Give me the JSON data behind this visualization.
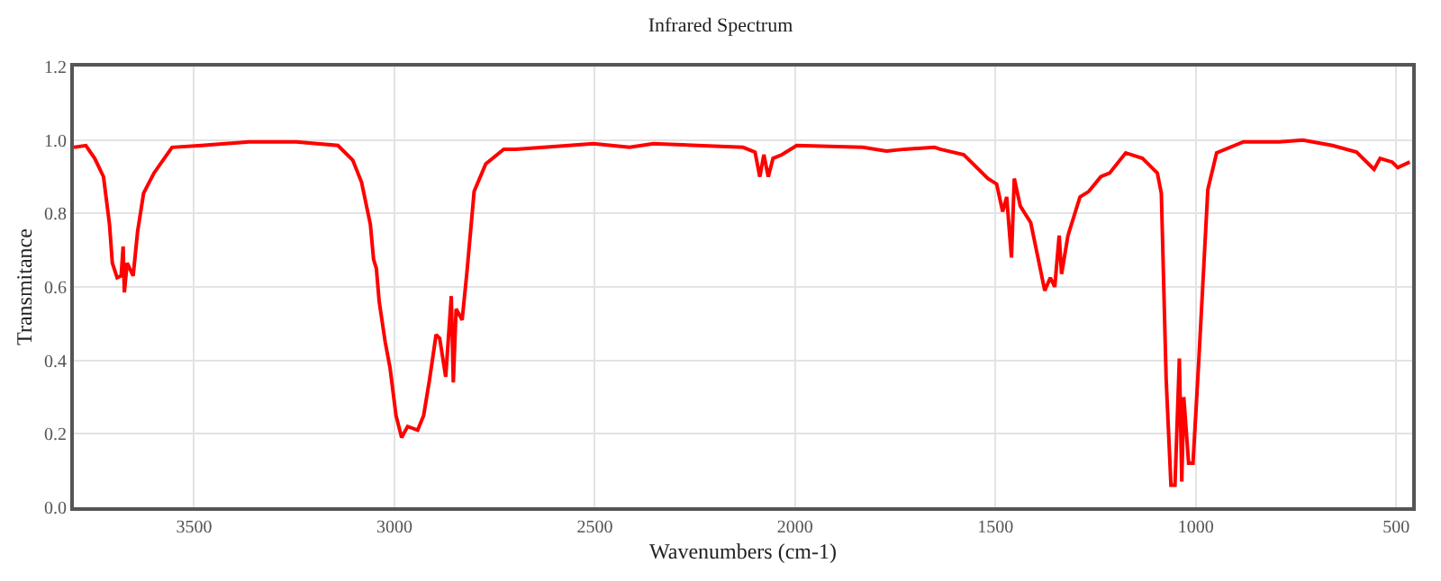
{
  "chart_data": {
    "type": "line",
    "title": "Infrared Spectrum",
    "xlabel": "Wavenumbers (cm-1)",
    "ylabel": "Transmitance",
    "xlim": [
      3800,
      460
    ],
    "xticks": [
      3500,
      3000,
      2500,
      2000,
      1500,
      1000,
      500
    ],
    "ylim": [
      0,
      1.2
    ],
    "yticks": [
      {
        "value": 0,
        "label": "0.0"
      },
      0.2,
      0.4,
      0.6,
      0.8,
      {
        "value": 1,
        "label": "1.0"
      },
      1.2
    ],
    "grid": true,
    "marker": "none",
    "line_style": "solid",
    "series": [
      {
        "color": "#ff0000",
        "x": [
          3800,
          3770,
          3748,
          3726,
          3711,
          3704,
          3692,
          3682,
          3677,
          3674,
          3667,
          3652,
          3641,
          3626,
          3600,
          3555,
          3481,
          3363,
          3245,
          3141,
          3104,
          3082,
          3060,
          3052,
          3045,
          3038,
          3023,
          3011,
          2996,
          2982,
          2967,
          2942,
          2927,
          2912,
          2896,
          2887,
          2872,
          2858,
          2853,
          2846,
          2831,
          2819,
          2801,
          2772,
          2727,
          2697,
          2503,
          2413,
          2354,
          2130,
          2100,
          2088,
          2078,
          2067,
          2055,
          2033,
          1996,
          1831,
          1772,
          1727,
          1652,
          1638,
          1579,
          1519,
          1497,
          1482,
          1472,
          1460,
          1453,
          1438,
          1412,
          1393,
          1377,
          1363,
          1352,
          1341,
          1335,
          1319,
          1289,
          1267,
          1237,
          1215,
          1175,
          1133,
          1096,
          1086,
          1074,
          1062,
          1052,
          1041,
          1035,
          1030,
          1018,
          1007,
          992,
          970,
          948,
          881,
          792,
          733,
          659,
          599,
          555,
          540,
          510,
          496,
          466
        ],
        "values": [
          0.98,
          0.985,
          0.95,
          0.9,
          0.77,
          0.665,
          0.625,
          0.63,
          0.71,
          0.585,
          0.665,
          0.63,
          0.75,
          0.855,
          0.91,
          0.98,
          0.985,
          0.995,
          0.995,
          0.985,
          0.945,
          0.885,
          0.77,
          0.675,
          0.65,
          0.56,
          0.45,
          0.38,
          0.25,
          0.19,
          0.22,
          0.21,
          0.25,
          0.35,
          0.47,
          0.46,
          0.355,
          0.575,
          0.34,
          0.54,
          0.51,
          0.64,
          0.86,
          0.935,
          0.975,
          0.975,
          0.99,
          0.98,
          0.99,
          0.98,
          0.967,
          0.9,
          0.96,
          0.9,
          0.95,
          0.96,
          0.985,
          0.98,
          0.97,
          0.975,
          0.98,
          0.975,
          0.96,
          0.895,
          0.88,
          0.805,
          0.845,
          0.68,
          0.895,
          0.82,
          0.775,
          0.675,
          0.59,
          0.625,
          0.6,
          0.74,
          0.635,
          0.74,
          0.845,
          0.86,
          0.9,
          0.91,
          0.965,
          0.95,
          0.91,
          0.855,
          0.35,
          0.06,
          0.06,
          0.405,
          0.07,
          0.3,
          0.12,
          0.12,
          0.41,
          0.865,
          0.965,
          0.995,
          0.995,
          1.0,
          0.985,
          0.967,
          0.92,
          0.95,
          0.94,
          0.925,
          0.94
        ]
      }
    ]
  }
}
